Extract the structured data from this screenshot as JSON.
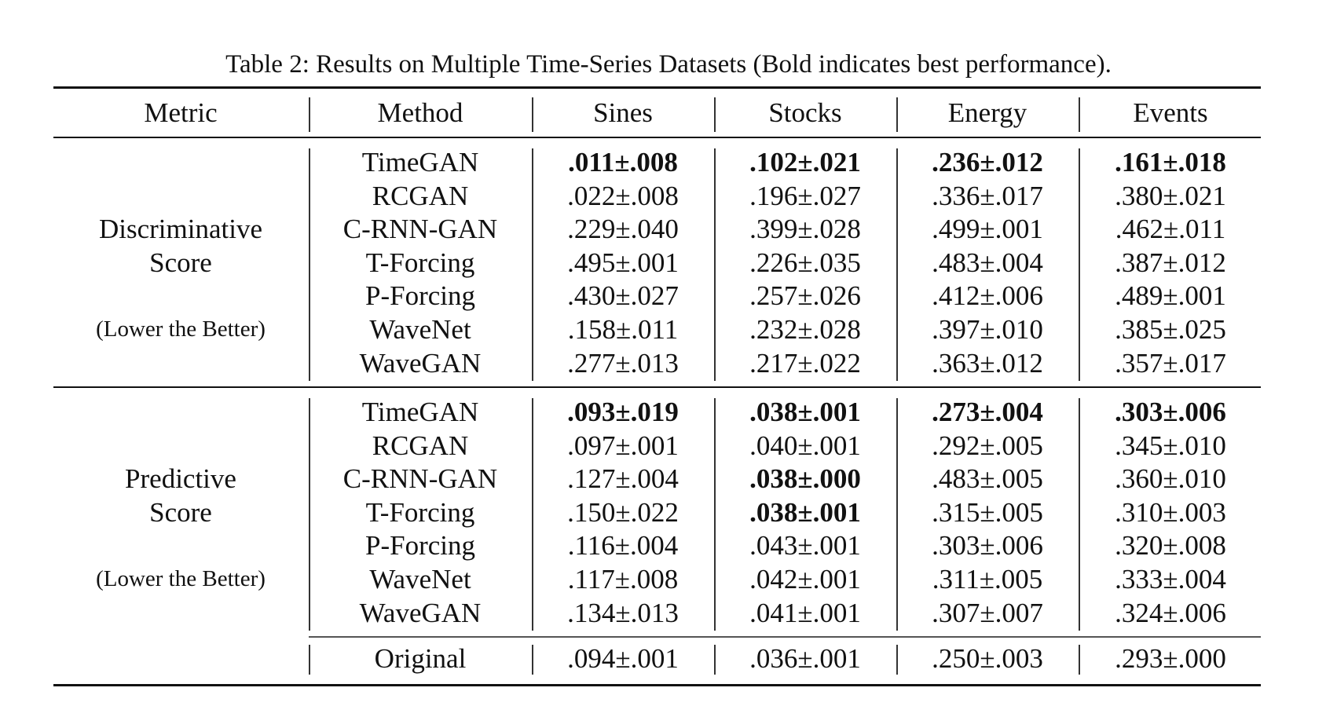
{
  "caption": "Table 2: Results on Multiple Time-Series Datasets (Bold indicates best performance).",
  "headers": [
    "Metric",
    "Method",
    "Sines",
    "Stocks",
    "Energy",
    "Events"
  ],
  "sections": [
    {
      "metric_line1": "Discriminative",
      "metric_line2": "Score",
      "metric_note": "(Lower the Better)",
      "rows": [
        {
          "method": "TimeGAN",
          "values": [
            ".011±.008",
            ".102±.021",
            ".236±.012",
            ".161±.018"
          ],
          "bold": [
            true,
            true,
            true,
            true
          ]
        },
        {
          "method": "RCGAN",
          "values": [
            ".022±.008",
            ".196±.027",
            ".336±.017",
            ".380±.021"
          ],
          "bold": [
            false,
            false,
            false,
            false
          ]
        },
        {
          "method": "C-RNN-GAN",
          "values": [
            ".229±.040",
            ".399±.028",
            ".499±.001",
            ".462±.011"
          ],
          "bold": [
            false,
            false,
            false,
            false
          ]
        },
        {
          "method": "T-Forcing",
          "values": [
            ".495±.001",
            ".226±.035",
            ".483±.004",
            ".387±.012"
          ],
          "bold": [
            false,
            false,
            false,
            false
          ]
        },
        {
          "method": "P-Forcing",
          "values": [
            ".430±.027",
            ".257±.026",
            ".412±.006",
            ".489±.001"
          ],
          "bold": [
            false,
            false,
            false,
            false
          ]
        },
        {
          "method": "WaveNet",
          "values": [
            ".158±.011",
            ".232±.028",
            ".397±.010",
            ".385±.025"
          ],
          "bold": [
            false,
            false,
            false,
            false
          ]
        },
        {
          "method": "WaveGAN",
          "values": [
            ".277±.013",
            ".217±.022",
            ".363±.012",
            ".357±.017"
          ],
          "bold": [
            false,
            false,
            false,
            false
          ]
        }
      ]
    },
    {
      "metric_line1": "Predictive",
      "metric_line2": "Score",
      "metric_note": "(Lower the Better)",
      "rows": [
        {
          "method": "TimeGAN",
          "values": [
            ".093±.019",
            ".038±.001",
            ".273±.004",
            ".303±.006"
          ],
          "bold": [
            true,
            true,
            true,
            true
          ]
        },
        {
          "method": "RCGAN",
          "values": [
            ".097±.001",
            ".040±.001",
            ".292±.005",
            ".345±.010"
          ],
          "bold": [
            false,
            false,
            false,
            false
          ]
        },
        {
          "method": "C-RNN-GAN",
          "values": [
            ".127±.004",
            ".038±.000",
            ".483±.005",
            ".360±.010"
          ],
          "bold": [
            false,
            true,
            false,
            false
          ]
        },
        {
          "method": "T-Forcing",
          "values": [
            ".150±.022",
            ".038±.001",
            ".315±.005",
            ".310±.003"
          ],
          "bold": [
            false,
            true,
            false,
            false
          ]
        },
        {
          "method": "P-Forcing",
          "values": [
            ".116±.004",
            ".043±.001",
            ".303±.006",
            ".320±.008"
          ],
          "bold": [
            false,
            false,
            false,
            false
          ]
        },
        {
          "method": "WaveNet",
          "values": [
            ".117±.008",
            ".042±.001",
            ".311±.005",
            ".333±.004"
          ],
          "bold": [
            false,
            false,
            false,
            false
          ]
        },
        {
          "method": "WaveGAN",
          "values": [
            ".134±.013",
            ".041±.001",
            ".307±.007",
            ".324±.006"
          ],
          "bold": [
            false,
            false,
            false,
            false
          ]
        }
      ]
    }
  ],
  "original_row": {
    "method": "Original",
    "values": [
      ".094±.001",
      ".036±.001",
      ".250±.003",
      ".293±.000"
    ]
  }
}
